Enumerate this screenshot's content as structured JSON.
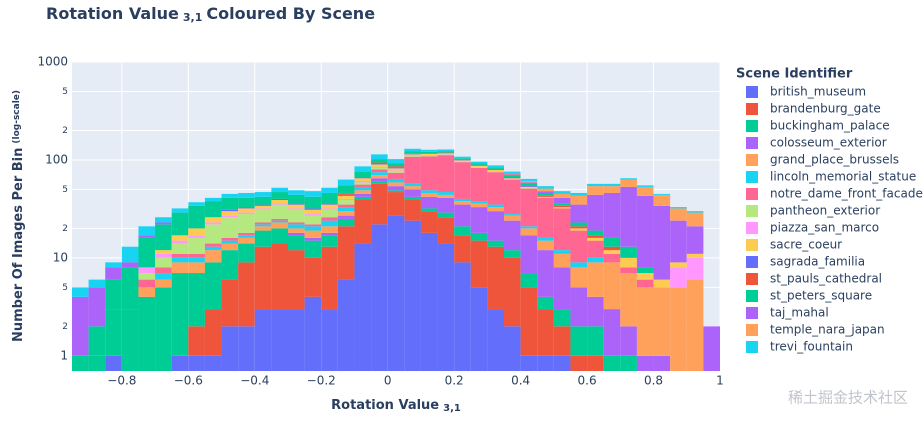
{
  "chart_data": {
    "type": "histogram",
    "title": {
      "text": "Rotation Value",
      "sub": "3,1",
      "rest": "Coloured By Scene"
    },
    "x_label": {
      "text": "Rotation Value",
      "sub": "3,1"
    },
    "y_label": {
      "text": "Number Of Images Per Bin",
      "note": "(log-scale)"
    },
    "legend_title": "Scene Identifier",
    "watermark": "稀土掘金技术社区",
    "log_y": true,
    "grid": true,
    "legend": "right",
    "barmode": "stack",
    "bins": [
      -0.95,
      -0.9,
      -0.85,
      -0.8,
      -0.75,
      -0.7,
      -0.65,
      -0.6,
      -0.55,
      -0.5,
      -0.45,
      -0.4,
      -0.35,
      -0.3,
      -0.25,
      -0.2,
      -0.15,
      -0.1,
      -0.05,
      0,
      0.05,
      0.1,
      0.15,
      0.2,
      0.25,
      0.3,
      0.35,
      0.4,
      0.45,
      0.5,
      0.55,
      0.6,
      0.65,
      0.7,
      0.75,
      0.8,
      0.85,
      0.9,
      0.95,
      1.0
    ],
    "xlim": [
      -0.95,
      1
    ],
    "xticks": [
      {
        "value": -0.8,
        "label": "−0.8"
      },
      {
        "value": -0.6,
        "label": "−0.6"
      },
      {
        "value": -0.4,
        "label": "−0.4"
      },
      {
        "value": -0.2,
        "label": "−0.2"
      },
      0,
      0.2,
      0.4,
      0.6,
      0.8,
      1
    ],
    "ylim": [
      0.7,
      1000
    ],
    "yticks": [
      1,
      {
        "value": 2,
        "label": "2"
      },
      {
        "value": 5,
        "label": "5"
      },
      10,
      {
        "value": 20,
        "label": "2"
      },
      {
        "value": 50,
        "label": "5"
      },
      100,
      {
        "value": 200,
        "label": "2"
      },
      {
        "value": 500,
        "label": "5"
      },
      1000
    ],
    "series": [
      {
        "name": "british_museum",
        "color": "#636efa",
        "values": [
          0,
          0,
          1,
          0,
          0,
          0,
          1,
          1,
          1,
          2,
          2,
          3,
          3,
          3,
          4,
          3,
          6,
          14,
          22,
          27,
          24,
          18,
          14,
          9,
          5,
          3,
          2,
          1,
          1,
          1,
          0,
          0,
          0,
          0,
          0,
          0,
          0,
          0,
          0
        ]
      },
      {
        "name": "brandenburg_gate",
        "color": "#EF553B",
        "values": [
          0,
          0,
          0,
          0,
          0,
          0,
          0,
          1,
          2,
          4,
          7,
          10,
          11,
          9,
          6,
          10,
          15,
          25,
          35,
          20,
          15,
          12,
          12,
          8,
          10,
          10,
          8,
          4,
          2,
          1,
          1,
          1,
          0,
          0,
          0,
          0,
          0,
          0,
          0
        ]
      },
      {
        "name": "buckingham_palace",
        "color": "#00cc96",
        "values": [
          0,
          1,
          2,
          3,
          4,
          5,
          6,
          5,
          6,
          6,
          5,
          6,
          6,
          5,
          5,
          4,
          4,
          3,
          3,
          2,
          3,
          2,
          3,
          4,
          3,
          2,
          2,
          2,
          1,
          1,
          1,
          1,
          1,
          1,
          0,
          0,
          0,
          0,
          0
        ]
      },
      {
        "name": "colosseum_exterior",
        "color": "#ab63fa",
        "values": [
          0,
          0,
          0,
          0,
          0,
          0,
          0,
          0,
          0,
          0,
          0,
          0,
          0,
          1,
          1,
          1,
          2,
          3,
          5,
          5,
          8,
          10,
          12,
          14,
          15,
          15,
          12,
          10,
          8,
          5,
          3,
          2,
          2,
          1,
          1,
          1,
          0,
          0,
          0
        ]
      },
      {
        "name": "grand_place_brussels",
        "color": "#FFA15A",
        "values": [
          0,
          0,
          0,
          0,
          1,
          1,
          2,
          2,
          3,
          2,
          2,
          2,
          3,
          2,
          3,
          3,
          3,
          4,
          5,
          5,
          4,
          4,
          3,
          3,
          3,
          3,
          3,
          3,
          3,
          3,
          3,
          5,
          6,
          5,
          4,
          4,
          5,
          6,
          0
        ]
      },
      {
        "name": "lincoln_memorial_statue",
        "color": "#19d3f3",
        "values": [
          0,
          0,
          0,
          0,
          0,
          1,
          1,
          1,
          1,
          1,
          1,
          1,
          1,
          2,
          2,
          3,
          3,
          4,
          5,
          5,
          4,
          3,
          3,
          2,
          2,
          2,
          1,
          1,
          1,
          1,
          1,
          1,
          0,
          0,
          0,
          0,
          0,
          0,
          0
        ]
      },
      {
        "name": "notre_dame_front_facade",
        "color": "#FF6692",
        "values": [
          0,
          0,
          0,
          0,
          1,
          1,
          1,
          1,
          1,
          1,
          1,
          1,
          1,
          1,
          1,
          2,
          2,
          3,
          5,
          10,
          50,
          60,
          65,
          55,
          45,
          40,
          35,
          30,
          25,
          20,
          10,
          5,
          2,
          1,
          1,
          0,
          0,
          0,
          0
        ]
      },
      {
        "name": "pantheon_exterior",
        "color": "#B6E880",
        "values": [
          0,
          0,
          0,
          0,
          1,
          2,
          3,
          5,
          8,
          10,
          10,
          8,
          10,
          8,
          5,
          5,
          4,
          3,
          3,
          3,
          2,
          2,
          2,
          1,
          1,
          1,
          1,
          1,
          0,
          0,
          0,
          0,
          0,
          0,
          0,
          0,
          0,
          0,
          0
        ]
      },
      {
        "name": "piazza_san_marco",
        "color": "#FF97FF",
        "values": [
          0,
          0,
          0,
          0,
          1,
          1,
          1,
          1,
          1,
          1,
          1,
          1,
          1,
          1,
          1,
          1,
          1,
          2,
          2,
          1,
          1,
          1,
          1,
          1,
          1,
          1,
          0,
          0,
          0,
          0,
          0,
          0,
          0,
          0,
          0,
          0,
          3,
          4,
          0
        ]
      },
      {
        "name": "sacre_coeur",
        "color": "#FECB52",
        "values": [
          0,
          0,
          0,
          0,
          0,
          1,
          2,
          3,
          3,
          3,
          3,
          2,
          3,
          3,
          3,
          3,
          3,
          4,
          5,
          4,
          3,
          3,
          2,
          2,
          2,
          2,
          1,
          1,
          1,
          1,
          1,
          1,
          1,
          2,
          1,
          1,
          1,
          1,
          0
        ]
      },
      {
        "name": "sagrada_familia",
        "color": "#636efa",
        "values": [
          0,
          0,
          0,
          0,
          0,
          0,
          0,
          0,
          0,
          1,
          1,
          1,
          1,
          1,
          1,
          1,
          1,
          1,
          2,
          2,
          2,
          1,
          1,
          1,
          1,
          1,
          1,
          1,
          0,
          0,
          0,
          0,
          0,
          0,
          0,
          0,
          0,
          0,
          0
        ]
      },
      {
        "name": "st_pauls_cathedral",
        "color": "#EF553B",
        "values": [
          0,
          0,
          0,
          0,
          0,
          0,
          0,
          0,
          0,
          0,
          0,
          0,
          0,
          0,
          0,
          0,
          1,
          1,
          2,
          2,
          1,
          1,
          1,
          1,
          1,
          1,
          1,
          1,
          1,
          1,
          1,
          1,
          1,
          0,
          0,
          0,
          0,
          0,
          0
        ]
      },
      {
        "name": "st_peters_square",
        "color": "#00cc96",
        "values": [
          1,
          1,
          3,
          5,
          8,
          10,
          12,
          14,
          12,
          10,
          8,
          7,
          7,
          8,
          10,
          10,
          10,
          9,
          8,
          6,
          5,
          4,
          4,
          3,
          3,
          3,
          3,
          3,
          3,
          2,
          2,
          2,
          3,
          3,
          1,
          0,
          0,
          0,
          0
        ]
      },
      {
        "name": "taj_mahal",
        "color": "#ab63fa",
        "values": [
          3,
          3,
          2,
          1,
          1,
          1,
          0,
          0,
          0,
          0,
          0,
          0,
          0,
          0,
          0,
          0,
          0,
          0,
          0,
          0,
          0,
          0,
          0,
          0,
          0,
          0,
          1,
          1,
          2,
          5,
          12,
          25,
          30,
          40,
          35,
          28,
          15,
          10,
          2
        ]
      },
      {
        "name": "temple_nara_japan",
        "color": "#FFA15A",
        "values": [
          0,
          0,
          0,
          0,
          0,
          0,
          0,
          0,
          0,
          0,
          0,
          0,
          0,
          0,
          0,
          0,
          0,
          0,
          0,
          0,
          0,
          0,
          0,
          0,
          0,
          0,
          1,
          2,
          3,
          4,
          8,
          10,
          8,
          10,
          10,
          10,
          8,
          8,
          0
        ]
      },
      {
        "name": "trevi_fountain",
        "color": "#19d3f3",
        "values": [
          1,
          1,
          1,
          4,
          4,
          3,
          3,
          3,
          3,
          4,
          5,
          5,
          5,
          5,
          6,
          6,
          8,
          10,
          12,
          10,
          8,
          6,
          5,
          4,
          4,
          4,
          4,
          3,
          3,
          3,
          3,
          3,
          3,
          2,
          2,
          1,
          1,
          1,
          0
        ]
      }
    ]
  }
}
